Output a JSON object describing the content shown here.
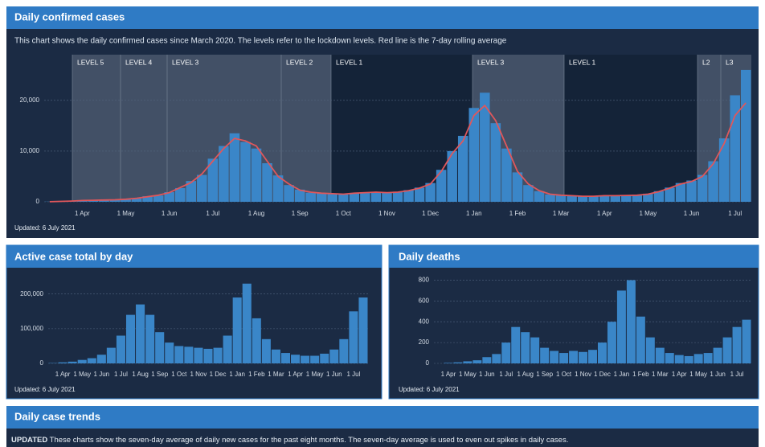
{
  "chart_data": [
    {
      "type": "bar",
      "title": "Daily confirmed cases",
      "subtitle": "This chart shows the daily confirmed cases since March 2020. The levels refer to the lockdown levels. Red line is the 7-day rolling average",
      "note": "Updated: 6 July 2021",
      "levels": [
        "LEVEL 5",
        "LEVEL 4",
        "LEVEL 3",
        "LEVEL 2",
        "LEVEL 1",
        "LEVEL 3",
        "LEVEL 1",
        "L2",
        "L3"
      ],
      "categories": [
        null,
        null,
        null,
        "1 Apr",
        null,
        null,
        null,
        "1 May",
        null,
        null,
        null,
        "1 Jun",
        null,
        null,
        null,
        "1 Jul",
        null,
        null,
        null,
        "1 Aug",
        null,
        null,
        null,
        "1 Sep",
        null,
        null,
        null,
        "1 Oct",
        null,
        null,
        null,
        "1 Nov",
        null,
        null,
        null,
        "1 Dec",
        null,
        null,
        null,
        "1 Jan",
        null,
        null,
        null,
        "1 Feb",
        null,
        null,
        null,
        "1 Mar",
        null,
        null,
        null,
        "1 Apr",
        null,
        null,
        null,
        "1 May",
        null,
        null,
        null,
        "1 Jun",
        null,
        null,
        null,
        "1 Jul",
        null
      ],
      "series": [
        {
          "type": "bar",
          "color": "#3a86c8",
          "values": [
            30,
            90,
            170,
            240,
            320,
            330,
            420,
            520,
            680,
            1100,
            1250,
            1900,
            2700,
            4100,
            5300,
            8500,
            11000,
            13500,
            11800,
            10500,
            7600,
            5200,
            3300,
            2400,
            1800,
            1750,
            1550,
            1450,
            1750,
            1850,
            1950,
            1750,
            2000,
            2300,
            2800,
            3700,
            6300,
            10000,
            13000,
            18500,
            21500,
            15500,
            10500,
            5800,
            3300,
            2100,
            1450,
            1350,
            1150,
            1100,
            1050,
            1250,
            1150,
            1300,
            1350,
            1600,
            2100,
            2800,
            3700,
            4200,
            5300,
            8000,
            12500,
            21000,
            26000
          ]
        },
        {
          "type": "line",
          "color": "#e0575b",
          "values": [
            20,
            80,
            150,
            250,
            300,
            350,
            400,
            500,
            700,
            1000,
            1300,
            1800,
            2800,
            3800,
            5500,
            8000,
            10500,
            12500,
            12000,
            11000,
            8000,
            5000,
            3500,
            2300,
            1900,
            1700,
            1600,
            1500,
            1700,
            1800,
            1900,
            1800,
            1900,
            2200,
            2700,
            3500,
            6000,
            9500,
            12000,
            17000,
            19000,
            16000,
            11000,
            6000,
            3500,
            2200,
            1500,
            1300,
            1200,
            1100,
            1100,
            1200,
            1200,
            1250,
            1300,
            1500,
            2000,
            2700,
            3500,
            4000,
            5000,
            7500,
            11500,
            17000,
            19500
          ]
        }
      ],
      "ylim": [
        0,
        29000
      ],
      "yticks": [
        0,
        {
          "value": 10000,
          "label": "10,000"
        },
        {
          "value": 20000,
          "label": "20,000"
        }
      ],
      "grid": true
    },
    {
      "type": "bar",
      "title": "Active case total by day",
      "note": "Updated: 6 July 2021",
      "categories": [
        null,
        "1 Apr",
        null,
        "1 May",
        null,
        "1 Jun",
        null,
        "1 Jul",
        null,
        "1 Aug",
        null,
        "1 Sep",
        null,
        "1 Oct",
        null,
        "1 Nov",
        null,
        "1 Dec",
        null,
        "1 Jan",
        null,
        "1 Feb",
        null,
        "1 Mar",
        null,
        "1 Apr",
        null,
        "1 May",
        null,
        "1 Jun",
        null,
        "1 Jul",
        null
      ],
      "series": [
        {
          "type": "bar",
          "color": "#3a86c8",
          "values": [
            1000,
            3000,
            5000,
            10000,
            15000,
            25000,
            45000,
            80000,
            140000,
            170000,
            140000,
            90000,
            60000,
            50000,
            48000,
            45000,
            42000,
            45000,
            80000,
            190000,
            230000,
            130000,
            70000,
            40000,
            30000,
            25000,
            22000,
            22000,
            28000,
            40000,
            70000,
            150000,
            190000
          ]
        }
      ],
      "ylim": [
        0,
        255000
      ],
      "yticks": [
        0,
        {
          "value": 100000,
          "label": "100,000"
        },
        {
          "value": 200000,
          "label": "200,000"
        }
      ],
      "grid": true
    },
    {
      "type": "bar",
      "title": "Daily deaths",
      "note": "Updated: 6 July 2021",
      "categories": [
        null,
        "1 Apr",
        null,
        "1 May",
        null,
        "1 Jun",
        null,
        "1 Jul",
        null,
        "1 Aug",
        null,
        "1 Sep",
        null,
        "1 Oct",
        null,
        "1 Nov",
        null,
        "1 Dec",
        null,
        "1 Jan",
        null,
        "1 Feb",
        null,
        "1 Mar",
        null,
        "1 Apr",
        null,
        "1 May",
        null,
        "1 Jun",
        null,
        "1 Jul",
        null
      ],
      "series": [
        {
          "type": "bar",
          "color": "#3a86c8",
          "values": [
            0,
            5,
            10,
            20,
            30,
            60,
            90,
            200,
            350,
            300,
            250,
            150,
            120,
            100,
            120,
            110,
            130,
            200,
            400,
            700,
            800,
            450,
            250,
            150,
            100,
            80,
            70,
            90,
            100,
            150,
            250,
            350,
            420
          ]
        }
      ],
      "ylim": [
        0,
        850
      ],
      "yticks": [
        0,
        200,
        400,
        600,
        800
      ],
      "grid": true
    }
  ],
  "trends": {
    "title": "Daily case trends",
    "tag": "UPDATED",
    "text": " These charts show the seven-day average of daily new cases for the past eight months. The seven-day average is used to even out spikes in daily cases."
  }
}
